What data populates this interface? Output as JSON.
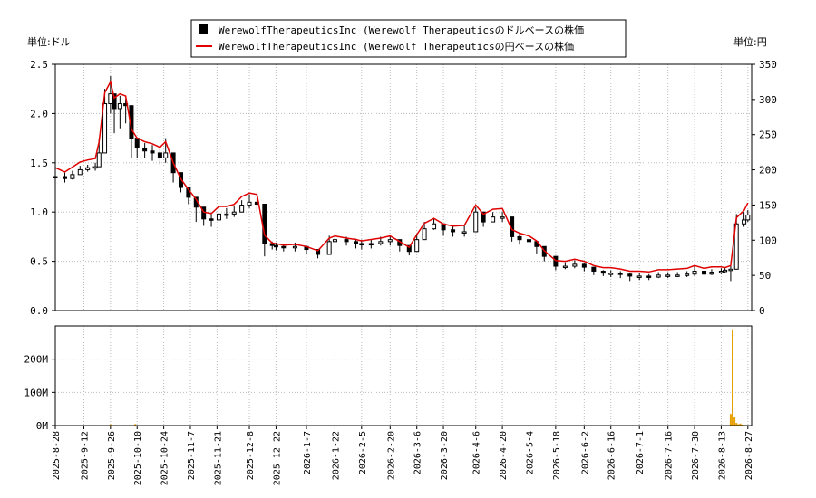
{
  "chart_data": {
    "type": "line",
    "title": "",
    "legend": {
      "placement": "top-center",
      "entries": [
        {
          "label": "WerewolfTherapeuticsInc (Werewolf Therapeuticsのドルベースの株価",
          "color": "#000000",
          "marker": "square"
        },
        {
          "label": "WerewolfTherapeuticsInc (Werewolf Therapeuticsの円ベースの株価",
          "color": "#e00000",
          "marker": "line"
        }
      ]
    },
    "left_unit_label": "単位:ドル",
    "right_unit_label": "単位:円",
    "y_left_range": [
      0,
      2.5
    ],
    "y_left_ticks": [
      "0.0",
      "0.5",
      "1.0",
      "1.5",
      "2.0",
      "2.5"
    ],
    "y_right_range": [
      0,
      350
    ],
    "y_right_ticks": [
      "0",
      "50",
      "100",
      "150",
      "200",
      "250",
      "300",
      "350"
    ],
    "volume_range": [
      0,
      300
    ],
    "volume_ticks": [
      "0M",
      "100M",
      "200M"
    ],
    "volume_tick_values": [
      0,
      100,
      200
    ],
    "x_range": [
      "2025-08-28",
      "2026-08-29"
    ],
    "x_ticks": [
      "2025-8-28",
      "2025-9-12",
      "2025-9-26",
      "2025-10-10",
      "2025-10-24",
      "2025-11-7",
      "2025-11-21",
      "2025-12-8",
      "2025-12-22",
      "2026-1-7",
      "2026-1-22",
      "2026-2-5",
      "2026-2-20",
      "2026-3-6",
      "2026-3-20",
      "2026-4-6",
      "2026-4-20",
      "2026-5-4",
      "2026-5-18",
      "2026-6-2",
      "2026-6-16",
      "2026-7-1",
      "2026-7-16",
      "2026-7-30",
      "2026-8-13",
      "2026-8-27"
    ],
    "grid": true,
    "usd_jpy_rate": 147,
    "series": [
      {
        "name": "WerewolfTherapeuticsInc (Werewolf Therapeuticsのドルベースの株価",
        "kind": "candlestick",
        "color": "#000000",
        "x": [
          "2025-08-28",
          "2025-09-02",
          "2025-09-06",
          "2025-09-10",
          "2025-09-14",
          "2025-09-18",
          "2025-09-20",
          "2025-09-23",
          "2025-09-26",
          "2025-09-28",
          "2025-10-01",
          "2025-10-04",
          "2025-10-07",
          "2025-10-10",
          "2025-10-14",
          "2025-10-18",
          "2025-10-22",
          "2025-10-25",
          "2025-10-29",
          "2025-11-02",
          "2025-11-06",
          "2025-11-10",
          "2025-11-14",
          "2025-11-18",
          "2025-11-22",
          "2025-11-26",
          "2025-11-30",
          "2025-12-04",
          "2025-12-08",
          "2025-12-12",
          "2025-12-16",
          "2025-12-20",
          "2025-12-22",
          "2025-12-26",
          "2026-01-01",
          "2026-01-07",
          "2026-01-13",
          "2026-01-19",
          "2026-01-22",
          "2026-01-28",
          "2026-02-02",
          "2026-02-05",
          "2026-02-10",
          "2026-02-15",
          "2026-02-20",
          "2026-02-25",
          "2026-03-02",
          "2026-03-06",
          "2026-03-10",
          "2026-03-15",
          "2026-03-20",
          "2026-03-25",
          "2026-03-31",
          "2026-04-06",
          "2026-04-10",
          "2026-04-15",
          "2026-04-20",
          "2026-04-25",
          "2026-04-29",
          "2026-05-04",
          "2026-05-08",
          "2026-05-12",
          "2026-05-18",
          "2026-05-23",
          "2026-05-28",
          "2026-06-02",
          "2026-06-07",
          "2026-06-12",
          "2026-06-16",
          "2026-06-21",
          "2026-06-26",
          "2026-07-01",
          "2026-07-06",
          "2026-07-11",
          "2026-07-16",
          "2026-07-21",
          "2026-07-26",
          "2026-07-30",
          "2026-08-04",
          "2026-08-08",
          "2026-08-13",
          "2026-08-15",
          "2026-08-18",
          "2026-08-21",
          "2026-08-25",
          "2026-08-27"
        ],
        "close": [
          1.36,
          1.34,
          1.38,
          1.43,
          1.45,
          1.46,
          1.6,
          2.1,
          2.2,
          2.05,
          2.1,
          2.08,
          1.75,
          1.65,
          1.62,
          1.6,
          1.55,
          1.6,
          1.4,
          1.25,
          1.15,
          1.05,
          0.93,
          0.92,
          0.98,
          0.98,
          1.0,
          1.07,
          1.1,
          1.08,
          0.68,
          0.66,
          0.65,
          0.64,
          0.65,
          0.62,
          0.57,
          0.7,
          0.72,
          0.7,
          0.68,
          0.67,
          0.68,
          0.7,
          0.72,
          0.66,
          0.6,
          0.72,
          0.83,
          0.88,
          0.82,
          0.8,
          0.8,
          1.0,
          0.9,
          0.95,
          0.95,
          0.75,
          0.72,
          0.7,
          0.65,
          0.55,
          0.45,
          0.45,
          0.47,
          0.44,
          0.4,
          0.38,
          0.38,
          0.37,
          0.35,
          0.35,
          0.34,
          0.36,
          0.36,
          0.36,
          0.37,
          0.4,
          0.37,
          0.39,
          0.4,
          0.41,
          0.42,
          0.88,
          0.92,
          0.97
        ],
        "high": [
          1.41,
          1.4,
          1.42,
          1.47,
          1.48,
          1.5,
          1.75,
          2.25,
          2.38,
          2.2,
          2.18,
          2.15,
          1.95,
          1.76,
          1.7,
          1.68,
          1.66,
          1.75,
          1.52,
          1.32,
          1.22,
          1.12,
          1.0,
          0.98,
          1.04,
          1.04,
          1.06,
          1.12,
          1.18,
          1.14,
          0.78,
          0.7,
          0.69,
          0.68,
          0.69,
          0.66,
          0.62,
          0.76,
          0.78,
          0.75,
          0.73,
          0.72,
          0.72,
          0.75,
          0.76,
          0.7,
          0.64,
          0.78,
          0.9,
          0.94,
          0.88,
          0.86,
          0.86,
          1.05,
          0.98,
          1.0,
          1.0,
          0.82,
          0.78,
          0.75,
          0.7,
          0.6,
          0.5,
          0.49,
          0.51,
          0.48,
          0.43,
          0.41,
          0.41,
          0.4,
          0.38,
          0.38,
          0.37,
          0.39,
          0.39,
          0.39,
          0.4,
          0.45,
          0.41,
          0.42,
          0.43,
          0.44,
          0.45,
          0.98,
          1.0,
          1.02
        ],
        "low": [
          1.3,
          1.3,
          1.33,
          1.39,
          1.41,
          1.42,
          1.5,
          1.7,
          2.0,
          1.8,
          1.85,
          1.9,
          1.55,
          1.55,
          1.55,
          1.52,
          1.48,
          1.5,
          1.3,
          1.2,
          1.08,
          0.9,
          0.86,
          0.85,
          0.9,
          0.93,
          0.95,
          1.02,
          1.04,
          1.0,
          0.55,
          0.62,
          0.61,
          0.6,
          0.6,
          0.57,
          0.53,
          0.64,
          0.67,
          0.66,
          0.63,
          0.62,
          0.63,
          0.66,
          0.66,
          0.6,
          0.56,
          0.65,
          0.78,
          0.82,
          0.76,
          0.75,
          0.75,
          0.88,
          0.85,
          0.9,
          0.9,
          0.7,
          0.67,
          0.65,
          0.58,
          0.5,
          0.41,
          0.42,
          0.43,
          0.4,
          0.36,
          0.35,
          0.34,
          0.33,
          0.3,
          0.31,
          0.31,
          0.33,
          0.33,
          0.34,
          0.34,
          0.35,
          0.34,
          0.36,
          0.37,
          0.38,
          0.3,
          0.8,
          0.85,
          0.9
        ]
      },
      {
        "name": "WerewolfTherapeuticsInc (Werewolf Therapeuticsの円ベースの株価",
        "kind": "line",
        "color": "#e00000",
        "x": [
          "2025-08-28",
          "2025-09-02",
          "2025-09-06",
          "2025-09-10",
          "2025-09-14",
          "2025-09-18",
          "2025-09-20",
          "2025-09-23",
          "2025-09-26",
          "2025-09-28",
          "2025-10-01",
          "2025-10-04",
          "2025-10-07",
          "2025-10-10",
          "2025-10-14",
          "2025-10-18",
          "2025-10-22",
          "2025-10-25",
          "2025-10-29",
          "2025-11-02",
          "2025-11-06",
          "2025-11-10",
          "2025-11-14",
          "2025-11-18",
          "2025-11-22",
          "2025-11-26",
          "2025-11-30",
          "2025-12-04",
          "2025-12-08",
          "2025-12-12",
          "2025-12-16",
          "2025-12-20",
          "2025-12-22",
          "2025-12-26",
          "2026-01-01",
          "2026-01-07",
          "2026-01-13",
          "2026-01-19",
          "2026-01-22",
          "2026-01-28",
          "2026-02-02",
          "2026-02-05",
          "2026-02-10",
          "2026-02-15",
          "2026-02-20",
          "2026-02-25",
          "2026-03-02",
          "2026-03-06",
          "2026-03-10",
          "2026-03-15",
          "2026-03-20",
          "2026-03-25",
          "2026-03-31",
          "2026-04-06",
          "2026-04-10",
          "2026-04-15",
          "2026-04-20",
          "2026-04-25",
          "2026-04-29",
          "2026-05-04",
          "2026-05-08",
          "2026-05-12",
          "2026-05-18",
          "2026-05-23",
          "2026-05-28",
          "2026-06-02",
          "2026-06-07",
          "2026-06-12",
          "2026-06-16",
          "2026-06-21",
          "2026-06-26",
          "2026-07-01",
          "2026-07-06",
          "2026-07-11",
          "2026-07-16",
          "2026-07-21",
          "2026-07-26",
          "2026-07-30",
          "2026-08-04",
          "2026-08-08",
          "2026-08-13",
          "2026-08-15",
          "2026-08-18",
          "2026-08-21",
          "2026-08-25",
          "2026-08-27"
        ],
        "values": [
          203,
          197,
          204,
          211,
          214,
          216,
          240,
          310,
          325,
          302,
          308,
          305,
          258,
          245,
          240,
          237,
          232,
          240,
          210,
          187,
          172,
          158,
          140,
          138,
          148,
          148,
          151,
          162,
          167,
          165,
          107,
          96,
          95,
          93,
          94,
          91,
          85,
          103,
          106,
          103,
          101,
          99,
          101,
          103,
          106,
          98,
          90,
          108,
          124,
          131,
          123,
          120,
          121,
          150,
          137,
          144,
          145,
          115,
          110,
          106,
          99,
          85,
          71,
          70,
          73,
          70,
          64,
          61,
          61,
          59,
          56,
          56,
          55,
          58,
          58,
          59,
          60,
          64,
          60,
          62,
          62,
          61,
          64,
          132,
          142,
          153
        ]
      },
      {
        "name": "出来高",
        "kind": "volume-bar",
        "color": "#e8a000",
        "x": [
          "2025-09-15",
          "2025-09-22",
          "2025-09-26",
          "2025-10-03",
          "2025-10-09",
          "2025-11-02",
          "2025-12-21",
          "2026-01-15",
          "2026-03-20",
          "2026-04-07",
          "2026-05-12",
          "2026-06-20",
          "2026-07-05",
          "2026-08-08",
          "2026-08-18",
          "2026-08-19",
          "2026-08-20",
          "2026-08-21",
          "2026-08-22",
          "2026-08-23",
          "2026-08-24",
          "2026-08-25",
          "2026-08-26"
        ],
        "values": [
          1.5,
          1.2,
          3.5,
          1.5,
          4.2,
          1.0,
          1.1,
          0.8,
          0.6,
          1.2,
          0.5,
          0.4,
          0.5,
          0.5,
          35,
          290,
          25,
          8,
          4,
          6,
          3,
          2,
          1.5
        ]
      }
    ]
  }
}
